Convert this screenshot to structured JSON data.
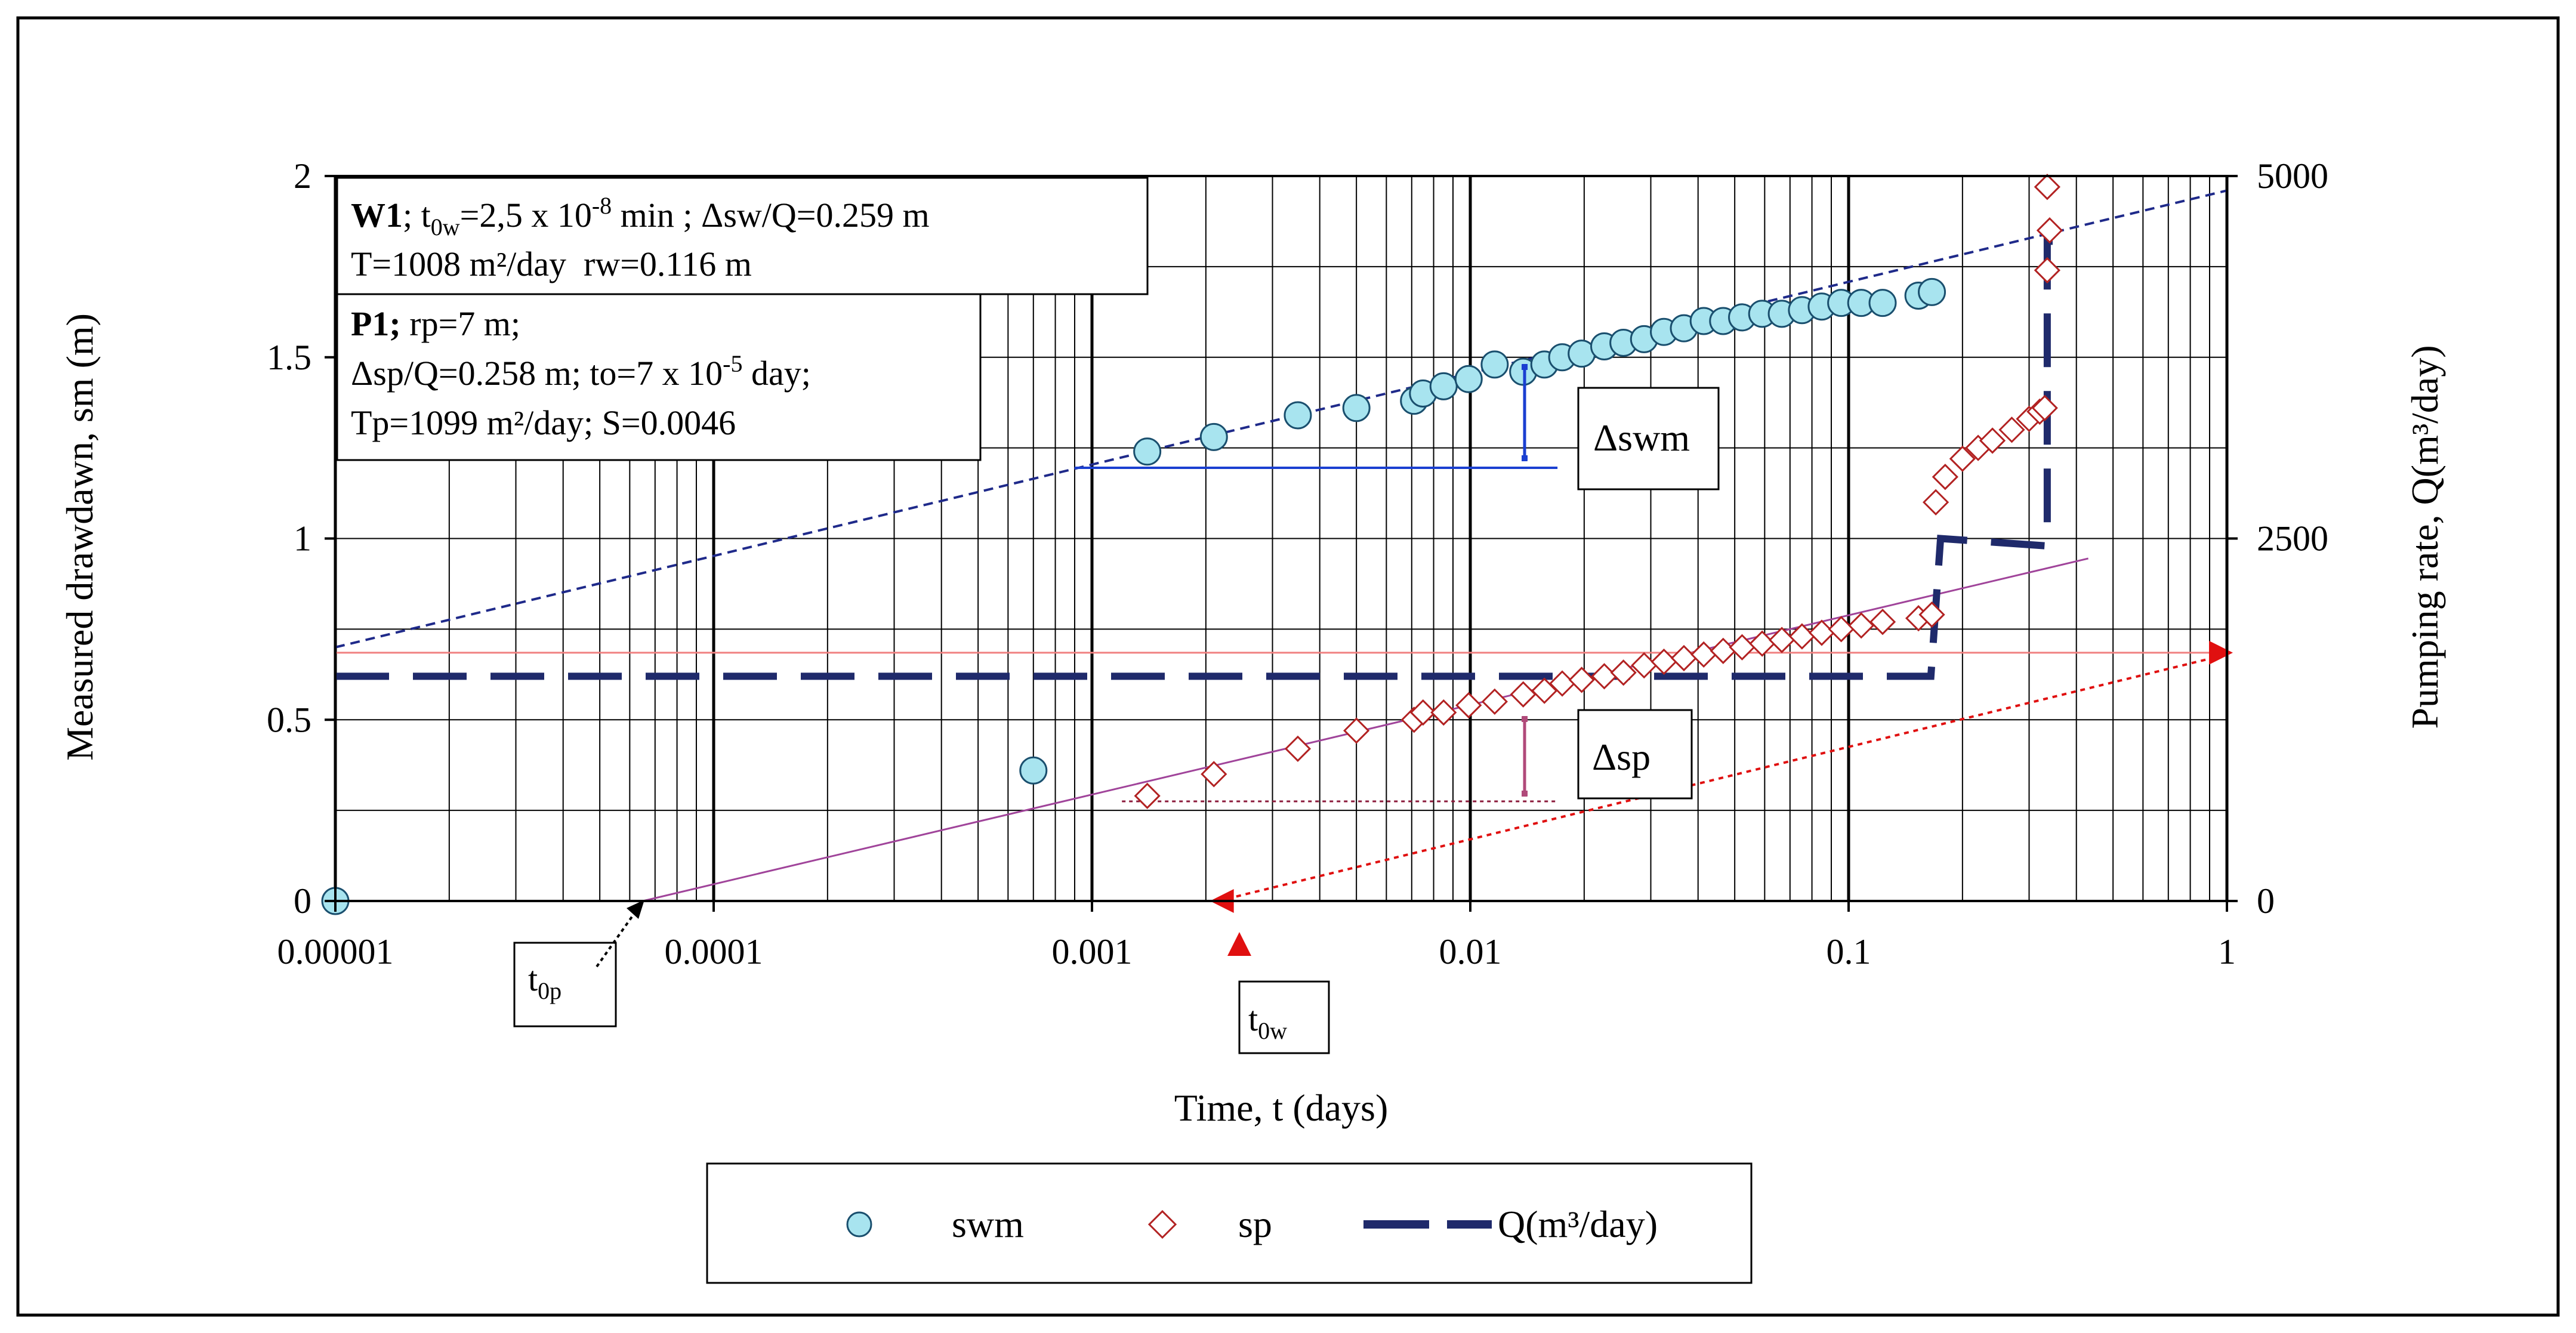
{
  "chart_data": {
    "type": "scatter",
    "xscale": "log",
    "xlim": [
      1e-05,
      1
    ],
    "ylim": [
      0,
      2
    ],
    "y2lim": [
      0,
      5000
    ],
    "xlabel": "Time, t (days)",
    "ylabel": "Measured drawdawn, sm (m)",
    "y2label": "Pumping rate, Q(m³/day)",
    "x_ticks": [
      {
        "v": 1e-05,
        "label": "0.00001"
      },
      {
        "v": 0.0001,
        "label": "0.0001"
      },
      {
        "v": 0.001,
        "label": "0.001"
      },
      {
        "v": 0.01,
        "label": "0.01"
      },
      {
        "v": 0.1,
        "label": "0.1"
      },
      {
        "v": 1,
        "label": "1"
      }
    ],
    "y_ticks": [
      {
        "v": 0,
        "label": "0"
      },
      {
        "v": 0.5,
        "label": "0.5"
      },
      {
        "v": 1,
        "label": "1"
      },
      {
        "v": 1.5,
        "label": "1.5"
      },
      {
        "v": 2,
        "label": "2"
      }
    ],
    "y2_ticks": [
      {
        "v": 0,
        "label": "0"
      },
      {
        "v": 2500,
        "label": "2500"
      },
      {
        "v": 5000,
        "label": "5000"
      }
    ],
    "series": [
      {
        "name": "swm",
        "marker": "circle",
        "color": "#a8e4ef",
        "edge": "#1a4f6e",
        "x": [
          1e-05,
          0.0007,
          0.0014,
          0.0021,
          0.0035,
          0.005,
          0.0071,
          0.0075,
          0.0085,
          0.0099,
          0.0116,
          0.0138,
          0.0157,
          0.0175,
          0.0197,
          0.0226,
          0.0254,
          0.0288,
          0.0325,
          0.0367,
          0.0414,
          0.0466,
          0.0523,
          0.0591,
          0.0666,
          0.0753,
          0.0849,
          0.0956,
          0.108,
          0.123,
          0.153,
          0.166
        ],
        "y": [
          0.0,
          0.36,
          1.24,
          1.28,
          1.34,
          1.36,
          1.38,
          1.4,
          1.42,
          1.44,
          1.48,
          1.46,
          1.48,
          1.5,
          1.51,
          1.53,
          1.54,
          1.55,
          1.57,
          1.58,
          1.6,
          1.6,
          1.61,
          1.62,
          1.62,
          1.63,
          1.64,
          1.65,
          1.65,
          1.65,
          1.67,
          1.68
        ]
      },
      {
        "name": "sp",
        "marker": "diamond",
        "color": "#c0504d",
        "edge": "#b22222",
        "x": [
          0.0014,
          0.0021,
          0.0035,
          0.005,
          0.0071,
          0.0075,
          0.0085,
          0.0099,
          0.0116,
          0.0138,
          0.0157,
          0.0175,
          0.0197,
          0.0226,
          0.0254,
          0.0288,
          0.0325,
          0.0367,
          0.0414,
          0.0466,
          0.0523,
          0.0591,
          0.0666,
          0.0753,
          0.0849,
          0.0956,
          0.108,
          0.123,
          0.153,
          0.166,
          0.17,
          0.18,
          0.2,
          0.22,
          0.24,
          0.27,
          0.3,
          0.32,
          0.33,
          0.335,
          0.34,
          0.335
        ],
        "y": [
          0.29,
          0.35,
          0.42,
          0.47,
          0.5,
          0.52,
          0.52,
          0.54,
          0.55,
          0.57,
          0.58,
          0.6,
          0.61,
          0.62,
          0.63,
          0.65,
          0.66,
          0.67,
          0.68,
          0.69,
          0.7,
          0.71,
          0.72,
          0.73,
          0.74,
          0.75,
          0.76,
          0.77,
          0.78,
          0.79,
          1.1,
          1.17,
          1.22,
          1.25,
          1.27,
          1.3,
          1.33,
          1.35,
          1.36,
          1.74,
          1.85,
          1.97
        ]
      },
      {
        "name": "Q(m³/day)",
        "marker": "dashed-line",
        "color": "#1f2a6b",
        "x": [
          1e-05,
          0.16,
          0.165,
          0.175,
          0.33,
          0.335,
          0.335,
          0.38
        ],
        "y2": [
          1550,
          1550,
          1550,
          2500,
          2450,
          2600,
          4550,
          4550
        ]
      }
    ],
    "legend": [
      "swm",
      "sp",
      "Q(m³/day)"
    ],
    "legend_position": "bottom",
    "annotations": {
      "w1_box": {
        "line1_bold": "W1",
        "line1_text": "; t",
        "line1_sub": "0w",
        "line1_mid": "=2,5 x 10",
        "line1_sup": "-8",
        "line1_end": " min ; Δsw/Q=0.259 m",
        "line2": "T=1008 m²/day  rw=0.116 m"
      },
      "p1_box": {
        "line1_bold": "P1;",
        "line1_text": " rp=7 m;",
        "line2_a": "Δsp/Q=0.258 m; to=7 x 10",
        "line2_sup": "-5",
        "line2_b": " day;",
        "line3": "Tp=1099 m²/day; S=0.0046"
      },
      "delta_swm": "Δswm",
      "delta_sp": "Δsp",
      "t0p_main": "t",
      "t0p_sub": "0p",
      "t0w_main": "t",
      "t0w_sub": "0w"
    }
  }
}
